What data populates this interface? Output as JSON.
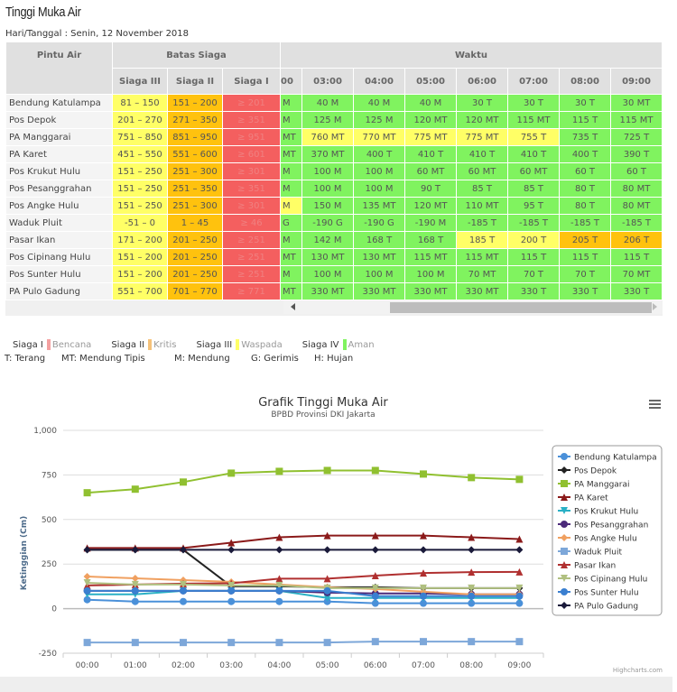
{
  "page": {
    "title": "Tinggi Muka Air",
    "date_label": "Hari/Tanggal : Senin, 12 November 2018"
  },
  "table": {
    "headers": {
      "pintu_air": "Pintu Air",
      "batas_siaga": "Batas Siaga",
      "waktu": "Waktu",
      "siaga3": "Siaga III",
      "siaga2": "Siaga II",
      "siaga1": "Siaga I",
      "partial_time": "00",
      "times": [
        "03:00",
        "04:00",
        "05:00",
        "06:00",
        "07:00",
        "08:00",
        "09:00"
      ]
    },
    "rows": [
      {
        "name": "Bendung Katulampa",
        "s3": "81 – 150",
        "s2": "151 – 200",
        "s1": "≥ 201",
        "partial": "M",
        "values": [
          "40 M",
          "40 M",
          "40 M",
          "30 T",
          "30 T",
          "30 T",
          "30 MT"
        ],
        "levels": [
          "g",
          "g",
          "g",
          "g",
          "g",
          "g",
          "g"
        ],
        "partial_level": "g"
      },
      {
        "name": "Pos Depok",
        "s3": "201 – 270",
        "s2": "271 – 350",
        "s1": "≥ 351",
        "partial": "M",
        "values": [
          "125 M",
          "125 M",
          "120 MT",
          "120 MT",
          "115 MT",
          "115 T",
          "115 MT"
        ],
        "levels": [
          "g",
          "g",
          "g",
          "g",
          "g",
          "g",
          "g"
        ],
        "partial_level": "g"
      },
      {
        "name": "PA Manggarai",
        "s3": "751 – 850",
        "s2": "851 – 950",
        "s1": "≥ 951",
        "partial": "MT",
        "values": [
          "760 MT",
          "770 MT",
          "775 MT",
          "775 MT",
          "755 T",
          "735 T",
          "725 T"
        ],
        "levels": [
          "y",
          "y",
          "y",
          "y",
          "y",
          "g",
          "g"
        ],
        "partial_level": "g"
      },
      {
        "name": "PA Karet",
        "s3": "451 – 550",
        "s2": "551 – 600",
        "s1": "≥ 601",
        "partial": "MT",
        "values": [
          "370 MT",
          "400 T",
          "410 T",
          "410 T",
          "410 T",
          "400 T",
          "390 T"
        ],
        "levels": [
          "g",
          "g",
          "g",
          "g",
          "g",
          "g",
          "g"
        ],
        "partial_level": "g"
      },
      {
        "name": "Pos Krukut Hulu",
        "s3": "151 – 250",
        "s2": "251 – 300",
        "s1": "≥ 301",
        "partial": "M",
        "values": [
          "100 M",
          "100 M",
          "60 MT",
          "60 MT",
          "60 MT",
          "60 T",
          "60 T"
        ],
        "levels": [
          "g",
          "g",
          "g",
          "g",
          "g",
          "g",
          "g"
        ],
        "partial_level": "g"
      },
      {
        "name": "Pos Pesanggrahan",
        "s3": "151 – 250",
        "s2": "251 – 350",
        "s1": "≥ 351",
        "partial": "M",
        "values": [
          "100 M",
          "100 M",
          "90 T",
          "85 T",
          "85 T",
          "80 T",
          "80 MT"
        ],
        "levels": [
          "g",
          "g",
          "g",
          "g",
          "g",
          "g",
          "g"
        ],
        "partial_level": "g"
      },
      {
        "name": "Pos Angke Hulu",
        "s3": "151 – 250",
        "s2": "251 – 300",
        "s1": "≥ 301",
        "partial": "M",
        "values": [
          "150 M",
          "135 MT",
          "120 MT",
          "110 MT",
          "95 T",
          "80 T",
          "80 MT"
        ],
        "levels": [
          "g",
          "g",
          "g",
          "g",
          "g",
          "g",
          "g"
        ],
        "partial_level": "y"
      },
      {
        "name": "Waduk Pluit",
        "s3": "-51 – 0",
        "s2": "1 – 45",
        "s1": "≥ 46",
        "partial": "G",
        "values": [
          "-190 G",
          "-190 G",
          "-190 M",
          "-185 T",
          "-185 T",
          "-185 T",
          "-185 T"
        ],
        "levels": [
          "g",
          "g",
          "g",
          "g",
          "g",
          "g",
          "g"
        ],
        "partial_level": "g"
      },
      {
        "name": "Pasar Ikan",
        "s3": "171 – 200",
        "s2": "201 – 250",
        "s1": "≥ 251",
        "partial": "M",
        "values": [
          "142 M",
          "168 T",
          "168 T",
          "185 T",
          "200 T",
          "205 T",
          "206 T"
        ],
        "levels": [
          "g",
          "g",
          "g",
          "y",
          "y",
          "o",
          "o"
        ],
        "partial_level": "g"
      },
      {
        "name": "Pos Cipinang Hulu",
        "s3": "151 – 200",
        "s2": "201 – 250",
        "s1": "≥ 251",
        "partial": "MT",
        "values": [
          "130 MT",
          "130 MT",
          "115 MT",
          "115 MT",
          "115 T",
          "115 T",
          "115 T"
        ],
        "levels": [
          "g",
          "g",
          "g",
          "g",
          "g",
          "g",
          "g"
        ],
        "partial_level": "g"
      },
      {
        "name": "Pos Sunter Hulu",
        "s3": "151 – 200",
        "s2": "201 – 250",
        "s1": "≥ 251",
        "partial": "M",
        "values": [
          "100 M",
          "100 M",
          "100 M",
          "70 MT",
          "70 T",
          "70 T",
          "70 MT"
        ],
        "levels": [
          "g",
          "g",
          "g",
          "g",
          "g",
          "g",
          "g"
        ],
        "partial_level": "g"
      },
      {
        "name": "PA Pulo Gadung",
        "s3": "551 – 700",
        "s2": "701 – 770",
        "s1": "≥ 771",
        "partial": "MT",
        "values": [
          "330 MT",
          "330 MT",
          "330 MT",
          "330 MT",
          "330 T",
          "330 T",
          "330 T"
        ],
        "levels": [
          "g",
          "g",
          "g",
          "g",
          "g",
          "g",
          "g"
        ],
        "partial_level": "g"
      }
    ]
  },
  "status_legend": [
    {
      "label": "Siaga I",
      "desc": "Bencana",
      "color": "#f4a0a0"
    },
    {
      "label": "Siaga II",
      "desc": "Kritis",
      "color": "#f5c27a"
    },
    {
      "label": "Siaga III",
      "desc": "Waspada",
      "color": "#ffff66"
    },
    {
      "label": "Siaga IV",
      "desc": "Aman",
      "color": "#80f35f"
    }
  ],
  "weather_legend": [
    "T: Terang",
    "MT: Mendung Tipis",
    "M: Mendung",
    "G: Gerimis",
    "H: Hujan"
  ],
  "chart_data": {
    "type": "line",
    "title": "Grafik Tinggi Muka Air",
    "subtitle": "BPBD Provinsi DKI Jakarta",
    "xlabel": "",
    "ylabel": "Ketinggian (Cm)",
    "ylim": [
      -250,
      1000
    ],
    "yticks": [
      -250,
      0,
      250,
      500,
      750,
      1000
    ],
    "ytick_labels": [
      "-250",
      "0",
      "250",
      "500",
      "750",
      "1,000"
    ],
    "grid": true,
    "legend_position": "right",
    "credits": "Highcharts.com",
    "menu_icon": "hamburger-menu-icon",
    "categories": [
      "00:00",
      "01:00",
      "02:00",
      "03:00",
      "04:00",
      "05:00",
      "06:00",
      "07:00",
      "08:00",
      "09:00"
    ],
    "series": [
      {
        "name": "Bendung Katulampa",
        "color": "#4a90d9",
        "marker": "circle",
        "values": [
          50,
          40,
          40,
          40,
          40,
          40,
          30,
          30,
          30,
          30
        ]
      },
      {
        "name": "Pos Depok",
        "color": "#222222",
        "marker": "diamond",
        "values": [
          330,
          330,
          330,
          125,
          125,
          120,
          120,
          115,
          115,
          115
        ]
      },
      {
        "name": "PA Manggarai",
        "color": "#90c030",
        "marker": "square",
        "values": [
          650,
          670,
          710,
          760,
          770,
          775,
          775,
          755,
          735,
          725
        ]
      },
      {
        "name": "PA Karet",
        "color": "#8b1a1a",
        "marker": "triangle",
        "values": [
          340,
          340,
          340,
          370,
          400,
          410,
          410,
          410,
          400,
          390
        ]
      },
      {
        "name": "Pos Krukut Hulu",
        "color": "#2ab0c5",
        "marker": "triangle-down",
        "values": [
          80,
          80,
          100,
          100,
          100,
          60,
          60,
          60,
          60,
          60
        ]
      },
      {
        "name": "Pos Pesanggrahan",
        "color": "#4b2a7a",
        "marker": "circle",
        "values": [
          100,
          100,
          100,
          100,
          100,
          90,
          85,
          85,
          80,
          80
        ]
      },
      {
        "name": "Pos Angke Hulu",
        "color": "#f0a060",
        "marker": "diamond",
        "values": [
          180,
          170,
          160,
          150,
          135,
          120,
          110,
          95,
          80,
          80
        ]
      },
      {
        "name": "Waduk Pluit",
        "color": "#7da7d9",
        "marker": "square",
        "values": [
          -190,
          -190,
          -190,
          -190,
          -190,
          -190,
          -185,
          -185,
          -185,
          -185
        ]
      },
      {
        "name": "Pasar Ikan",
        "color": "#b03030",
        "marker": "triangle",
        "values": [
          130,
          135,
          140,
          142,
          168,
          168,
          185,
          200,
          205,
          206
        ]
      },
      {
        "name": "Pos Cipinang Hulu",
        "color": "#b0c080",
        "marker": "triangle-down",
        "values": [
          145,
          135,
          135,
          130,
          130,
          115,
          115,
          115,
          115,
          115
        ]
      },
      {
        "name": "Pos Sunter Hulu",
        "color": "#3a7fd0",
        "marker": "circle",
        "values": [
          100,
          100,
          100,
          100,
          100,
          100,
          70,
          70,
          70,
          70
        ]
      },
      {
        "name": "PA Pulo Gadung",
        "color": "#1a1a3a",
        "marker": "diamond",
        "values": [
          330,
          330,
          330,
          330,
          330,
          330,
          330,
          330,
          330,
          330
        ]
      }
    ]
  }
}
